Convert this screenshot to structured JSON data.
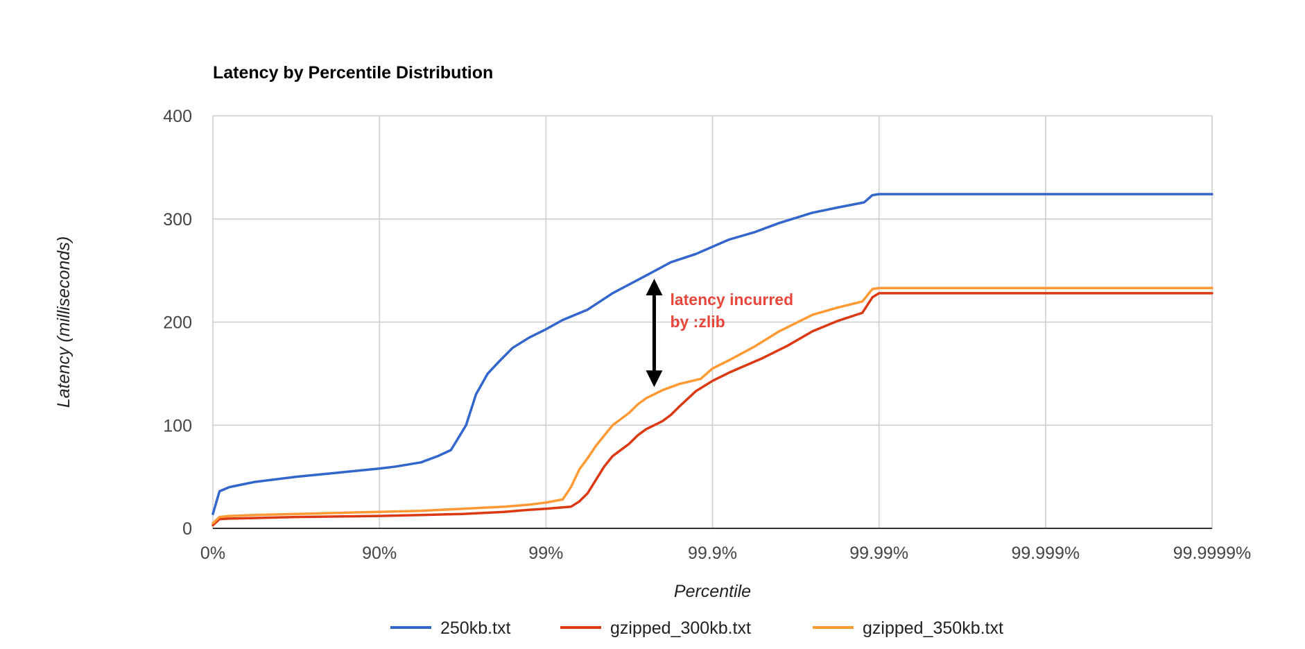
{
  "chart_data": {
    "type": "line",
    "title": "Latency by Percentile Distribution",
    "xlabel": "Percentile",
    "ylabel": "Latency (milliseconds)",
    "x_scale": "log-percentile",
    "x_ticks": [
      "0%",
      "90%",
      "99%",
      "99.9%",
      "99.99%",
      "99.999%",
      "99.9999%"
    ],
    "ylim": [
      0,
      400
    ],
    "y_ticks": [
      "0",
      "100",
      "200",
      "300",
      "400"
    ],
    "grid": true,
    "legend_position": "bottom",
    "series": [
      {
        "name": "250kb.txt",
        "color": "#3366cc",
        "x": [
          0.0,
          0.04,
          0.1,
          0.25,
          0.5,
          0.75,
          1.0,
          1.1,
          1.25,
          1.35,
          1.43,
          1.52,
          1.58,
          1.65,
          1.72,
          1.8,
          1.9,
          2.0,
          2.1,
          2.25,
          2.4,
          2.6,
          2.75,
          2.9,
          3.0,
          3.1,
          3.25,
          3.4,
          3.6,
          3.75,
          3.91,
          3.96,
          4.0,
          6.0
        ],
        "values": [
          14,
          36,
          40,
          45,
          50,
          54,
          58,
          60,
          64,
          70,
          76,
          100,
          130,
          150,
          162,
          175,
          185,
          193,
          202,
          212,
          228,
          245,
          258,
          266,
          273,
          280,
          287,
          296,
          306,
          311,
          316,
          323,
          324,
          324
        ]
      },
      {
        "name": "gzipped_300kb.txt",
        "color": "#dc3912",
        "x": [
          0.0,
          0.04,
          0.1,
          0.25,
          0.5,
          0.75,
          1.0,
          1.25,
          1.5,
          1.75,
          1.9,
          2.0,
          2.15,
          2.2,
          2.25,
          2.3,
          2.35,
          2.4,
          2.5,
          2.55,
          2.6,
          2.7,
          2.75,
          2.8,
          2.9,
          3.0,
          3.1,
          3.2,
          3.3,
          3.45,
          3.6,
          3.75,
          3.9,
          3.96,
          4.0,
          6.0
        ],
        "values": [
          3,
          9,
          9.5,
          10,
          11,
          11.5,
          12,
          13,
          14,
          16,
          18,
          19,
          21,
          26,
          34,
          47,
          60,
          70,
          82,
          90,
          96,
          104,
          110,
          118,
          133,
          143,
          151,
          158,
          165,
          177,
          191,
          201,
          209,
          224,
          228,
          228
        ]
      },
      {
        "name": "gzipped_350kb.txt",
        "color": "#ff9933",
        "x": [
          0.0,
          0.04,
          0.1,
          0.25,
          0.5,
          0.75,
          1.0,
          1.25,
          1.5,
          1.75,
          1.9,
          2.0,
          2.1,
          2.15,
          2.2,
          2.25,
          2.3,
          2.4,
          2.5,
          2.55,
          2.6,
          2.7,
          2.8,
          2.93,
          3.0,
          3.1,
          3.25,
          3.4,
          3.6,
          3.75,
          3.9,
          3.96,
          4.0,
          6.0
        ],
        "values": [
          5,
          11,
          12,
          13,
          14,
          15,
          16,
          17,
          19,
          21,
          23,
          25,
          28,
          40,
          57,
          68,
          80,
          100,
          112,
          120,
          126,
          134,
          140,
          145,
          155,
          163,
          176,
          191,
          207,
          214,
          220,
          232,
          233,
          233
        ]
      }
    ],
    "annotation": {
      "lines": [
        "latency incurred",
        "by :zlib"
      ],
      "color": "#e8463a",
      "arrow_x": 2.65,
      "arrow_y_range": [
        137,
        242
      ]
    }
  }
}
